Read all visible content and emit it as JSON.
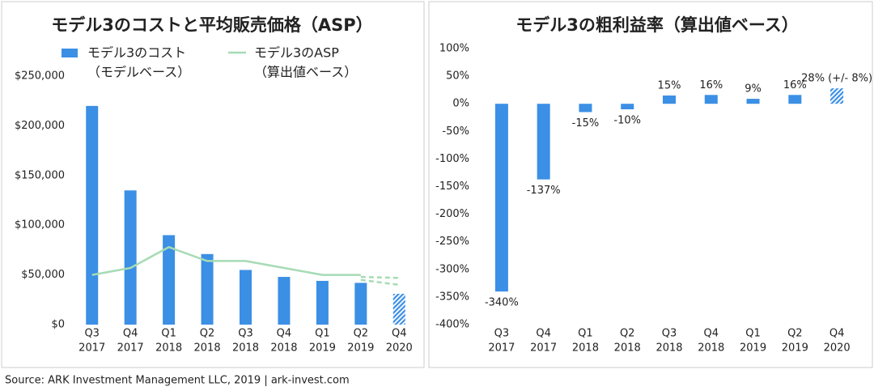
{
  "chart_data": [
    {
      "type": "bar",
      "title": "モデル3のコストと平均販売価格（ASP）",
      "categories": [
        [
          "Q3",
          "2017"
        ],
        [
          "Q4",
          "2017"
        ],
        [
          "Q1",
          "2018"
        ],
        [
          "Q2",
          "2018"
        ],
        [
          "Q3",
          "2018"
        ],
        [
          "Q4",
          "2018"
        ],
        [
          "Q1",
          "2019"
        ],
        [
          "Q2",
          "2019"
        ],
        [
          "Q4",
          "2020"
        ]
      ],
      "series": [
        {
          "name": [
            "モデル3のコスト",
            "（モデルベース）"
          ],
          "type": "bar",
          "color": "#3b8fe5",
          "values": [
            220000,
            135000,
            90000,
            71000,
            55000,
            48000,
            44000,
            42000,
            31000
          ],
          "hatched": [
            false,
            false,
            false,
            false,
            false,
            false,
            false,
            false,
            true
          ]
        },
        {
          "name": [
            "モデル3のASP",
            "（算出値ベース）"
          ],
          "type": "line",
          "color": "#a6dbb5",
          "values": [
            50000,
            57000,
            78000,
            64000,
            64000,
            57000,
            50000,
            50000,
            null
          ]
        },
        {
          "type": "line",
          "style": "dashed",
          "color": "#a6dbb5",
          "values": [
            null,
            null,
            null,
            null,
            null,
            null,
            null,
            48000,
            47000
          ]
        },
        {
          "type": "line",
          "style": "dashed",
          "color": "#a6dbb5",
          "values": [
            null,
            null,
            null,
            null,
            null,
            null,
            null,
            45000,
            40000
          ]
        }
      ],
      "ylim": [
        0,
        250000
      ],
      "yticks": [
        {
          "value": 0,
          "label": "$0"
        },
        {
          "value": 50000,
          "label": "$50,000"
        },
        {
          "value": 100000,
          "label": "$100,000"
        },
        {
          "value": 150000,
          "label": "$150,000"
        },
        {
          "value": 200000,
          "label": "$200,000"
        },
        {
          "value": 250000,
          "label": "$250,000"
        }
      ]
    },
    {
      "type": "bar",
      "title": "モデル3の粗利益率（算出値ベース）",
      "categories": [
        [
          "Q3",
          "2017"
        ],
        [
          "Q4",
          "2017"
        ],
        [
          "Q1",
          "2018"
        ],
        [
          "Q2",
          "2018"
        ],
        [
          "Q3",
          "2018"
        ],
        [
          "Q4",
          "2018"
        ],
        [
          "Q1",
          "2019"
        ],
        [
          "Q2",
          "2019"
        ],
        [
          "Q4",
          "2020"
        ]
      ],
      "color": "#3b8fe5",
      "values": [
        -340,
        -137,
        -15,
        -10,
        15,
        16,
        9,
        16,
        28
      ],
      "value_labels": [
        "-340%",
        "-137%",
        "-15%",
        "-10%",
        "15%",
        "16%",
        "9%",
        "16%",
        "28% (+/- 8%)"
      ],
      "hatched": [
        false,
        false,
        false,
        false,
        false,
        false,
        false,
        false,
        true
      ],
      "ylim": [
        -400,
        100
      ],
      "yticks": [
        {
          "value": -400,
          "label": "-400%"
        },
        {
          "value": -350,
          "label": "-350%"
        },
        {
          "value": -300,
          "label": "-300%"
        },
        {
          "value": -250,
          "label": "-250%"
        },
        {
          "value": -200,
          "label": "-200%"
        },
        {
          "value": -150,
          "label": "-150%"
        },
        {
          "value": -100,
          "label": "-100%"
        },
        {
          "value": -50,
          "label": "-50%"
        },
        {
          "value": 0,
          "label": "0%"
        },
        {
          "value": 50,
          "label": "50%"
        },
        {
          "value": 100,
          "label": "100%"
        }
      ]
    }
  ],
  "source": "Source: ARK Investment Management LLC, 2019 | ark-invest.com"
}
